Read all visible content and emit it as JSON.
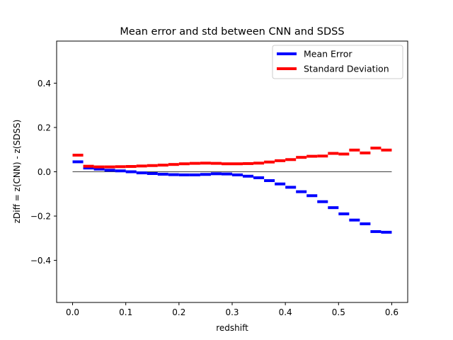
{
  "chart_data": {
    "type": "line",
    "title": "Mean error and std between CNN and SDSS",
    "xlabel": "redshift",
    "ylabel": "zDiff = z(CNN) - z(SDSS)",
    "xlim": [
      -0.03,
      0.63
    ],
    "ylim": [
      -0.59,
      0.59
    ],
    "xticks": [
      0.0,
      0.1,
      0.2,
      0.3,
      0.4,
      0.5,
      0.6
    ],
    "xtick_labels": [
      "0.0",
      "0.1",
      "0.2",
      "0.3",
      "0.4",
      "0.5",
      "0.6"
    ],
    "yticks": [
      -0.4,
      -0.2,
      0.0,
      0.2,
      0.4
    ],
    "ytick_labels": [
      "−0.4",
      "−0.2",
      "0.0",
      "0.2",
      "0.4"
    ],
    "grid": false,
    "legend_position": "top-right",
    "bin_width": 0.02,
    "zero_line": {
      "from": 0.0,
      "to": 0.6,
      "color": "#000000"
    },
    "series": [
      {
        "name": "Mean Error",
        "color": "#0000ff",
        "x": [
          0.0,
          0.02,
          0.04,
          0.06,
          0.08,
          0.1,
          0.12,
          0.14,
          0.16,
          0.18,
          0.2,
          0.22,
          0.24,
          0.26,
          0.28,
          0.3,
          0.32,
          0.34,
          0.36,
          0.38,
          0.4,
          0.42,
          0.44,
          0.46,
          0.48,
          0.5,
          0.52,
          0.54,
          0.56,
          0.58
        ],
        "values": [
          0.045,
          0.017,
          0.012,
          0.007,
          0.004,
          0.0,
          -0.005,
          -0.008,
          -0.011,
          -0.013,
          -0.014,
          -0.014,
          -0.012,
          -0.009,
          -0.01,
          -0.014,
          -0.02,
          -0.027,
          -0.04,
          -0.055,
          -0.07,
          -0.09,
          -0.108,
          -0.135,
          -0.162,
          -0.19,
          -0.218,
          -0.235,
          -0.27,
          -0.273
        ]
      },
      {
        "name": "Standard Deviation",
        "color": "#ff0000",
        "x": [
          0.0,
          0.02,
          0.04,
          0.06,
          0.08,
          0.1,
          0.12,
          0.14,
          0.16,
          0.18,
          0.2,
          0.22,
          0.24,
          0.26,
          0.28,
          0.3,
          0.32,
          0.34,
          0.36,
          0.38,
          0.4,
          0.42,
          0.44,
          0.46,
          0.48,
          0.5,
          0.52,
          0.54,
          0.56,
          0.58
        ],
        "values": [
          0.075,
          0.025,
          0.022,
          0.022,
          0.023,
          0.024,
          0.026,
          0.028,
          0.03,
          0.033,
          0.036,
          0.038,
          0.039,
          0.038,
          0.036,
          0.036,
          0.037,
          0.039,
          0.044,
          0.05,
          0.055,
          0.065,
          0.07,
          0.071,
          0.083,
          0.08,
          0.098,
          0.085,
          0.107,
          0.098
        ]
      }
    ]
  }
}
